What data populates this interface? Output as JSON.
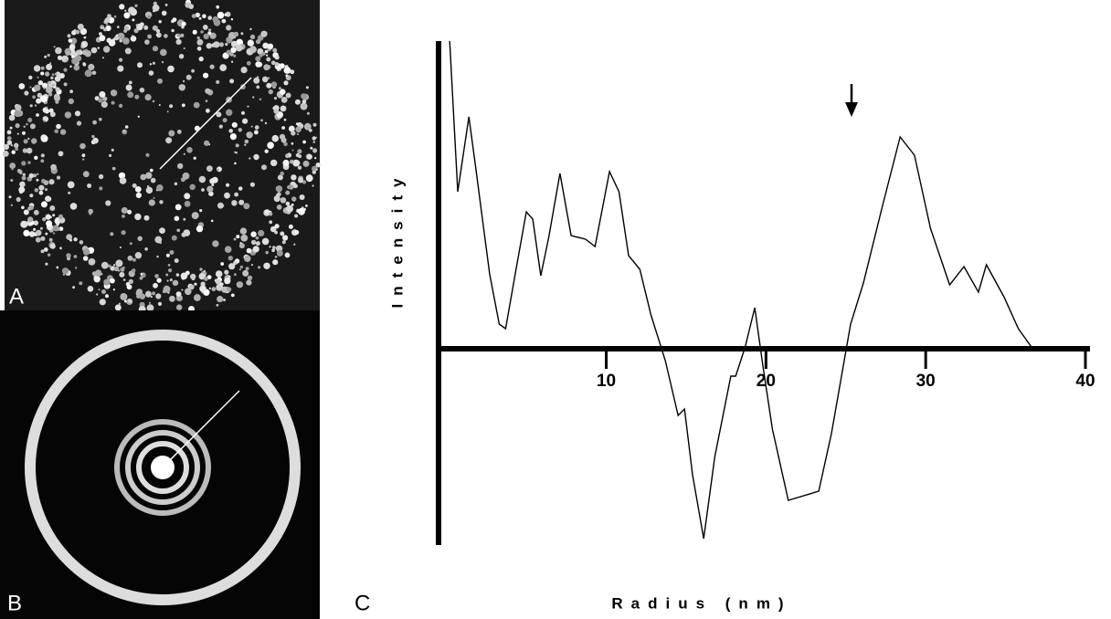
{
  "panel_labels": [
    "A",
    "B",
    "C"
  ],
  "chart_data": {
    "type": "line",
    "xlabel": "Radius (nm)",
    "ylabel": "Intensity",
    "x": [
      0.2,
      0.7,
      1.4,
      1.8,
      2.7,
      3.3,
      3.7,
      4.4,
      5.0,
      5.4,
      5.9,
      6.4,
      7.1,
      7.8,
      8.7,
      9.3,
      10.2,
      10.8,
      11.4,
      12.1,
      12.8,
      13.7,
      14.5,
      14.9,
      15.4,
      16.1,
      16.8,
      17.8,
      18.1,
      18.7,
      19.3,
      19.8,
      20.4,
      21.4,
      23.3,
      24.1,
      25.3,
      26.1,
      27.3,
      28.4,
      29.3,
      30.3,
      31.5,
      32.4,
      33.3,
      33.8,
      34.9,
      35.8,
      36.7
    ],
    "series": [
      {
        "color": "#000000",
        "values": [
          3.37,
          1.72,
          2.54,
          2.02,
          0.82,
          0.27,
          0.22,
          0.92,
          1.5,
          1.42,
          0.8,
          1.22,
          1.92,
          1.24,
          1.2,
          1.12,
          1.94,
          1.72,
          1.02,
          0.87,
          0.37,
          -0.13,
          -0.73,
          -0.66,
          -1.38,
          -2.08,
          -1.18,
          -0.3,
          -0.3,
          0.02,
          0.45,
          -0.18,
          -0.88,
          -1.66,
          -1.56,
          -0.93,
          0.27,
          0.72,
          1.57,
          2.32,
          2.12,
          1.32,
          0.7,
          0.9,
          0.62,
          0.92,
          0.57,
          0.22,
          0.0
        ]
      }
    ],
    "xlim": [
      -0.5,
      40
    ],
    "xticks": [
      10,
      20,
      30,
      40
    ],
    "ylim": [
      -2.13,
      3.37
    ]
  }
}
